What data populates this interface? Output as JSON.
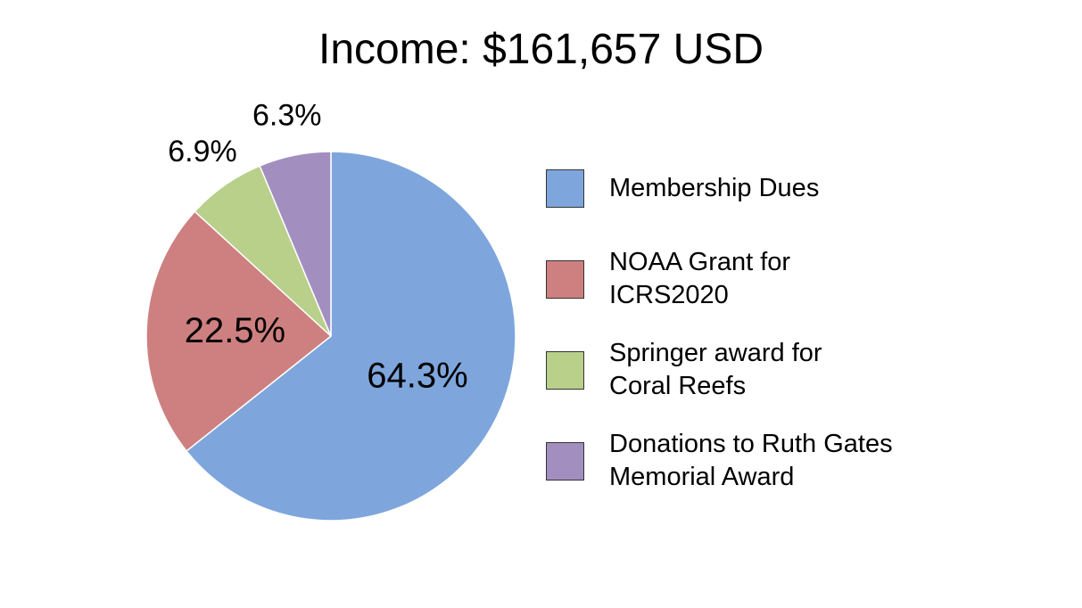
{
  "chart_data": {
    "type": "pie",
    "title": "Income: $161,657 USD",
    "categories": [
      "Membership Dues",
      "NOAA Grant for\nICRS2020",
      "Springer award for\nCoral Reefs",
      "Donations to Ruth Gates\nMemorial Award"
    ],
    "values": [
      64.3,
      22.5,
      6.9,
      6.3
    ],
    "value_labels": [
      "64.3%",
      "22.5%",
      "6.9%",
      "6.3%"
    ],
    "colors": [
      "#7ea6dc",
      "#cd807f",
      "#b8d08a",
      "#a38fbf"
    ]
  }
}
